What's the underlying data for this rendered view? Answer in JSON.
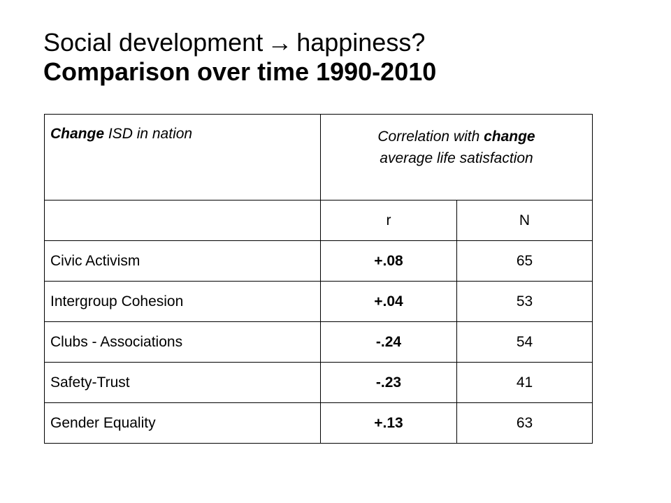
{
  "title": {
    "line1_before": "Social development",
    "arrow": "→",
    "line1_after": "happiness?",
    "line2": "Comparison over time 1990-2010"
  },
  "table": {
    "header": {
      "col1_bold": "Change",
      "col1_rest": " ISD in nation",
      "col2_line1_plain": "Correlation with ",
      "col2_line1_bold": "change",
      "col2_line2": "average life satisfaction"
    },
    "subheader": [
      "",
      "r",
      "N"
    ],
    "rows": [
      {
        "label": "Civic Activism",
        "r": "+.08",
        "n": "65"
      },
      {
        "label": "Intergroup Cohesion",
        "r": "+.04",
        "n": "53"
      },
      {
        "label": "Clubs - Associations",
        "r": "-.24",
        "n": "54"
      },
      {
        "label": "Safety-Trust",
        "r": "-.23",
        "n": "41"
      },
      {
        "label": "Gender Equality",
        "r": "+.13",
        "n": "63"
      }
    ]
  }
}
